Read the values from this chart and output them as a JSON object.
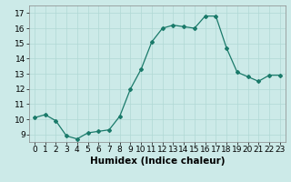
{
  "x": [
    0,
    1,
    2,
    3,
    4,
    5,
    6,
    7,
    8,
    9,
    10,
    11,
    12,
    13,
    14,
    15,
    16,
    17,
    18,
    19,
    20,
    21,
    22,
    23
  ],
  "y": [
    10.1,
    10.3,
    9.9,
    8.9,
    8.7,
    9.1,
    9.2,
    9.3,
    10.2,
    12.0,
    13.3,
    15.1,
    16.0,
    16.2,
    16.1,
    16.0,
    16.8,
    16.8,
    14.7,
    13.1,
    12.8,
    12.5,
    12.9,
    12.9
  ],
  "line_color": "#1a7a6a",
  "marker": "D",
  "marker_size": 2,
  "bg_color": "#cceae8",
  "grid_color": "#b0d8d4",
  "xlabel": "Humidex (Indice chaleur)",
  "xlim": [
    -0.5,
    23.5
  ],
  "ylim": [
    8.5,
    17.5
  ],
  "yticks": [
    9,
    10,
    11,
    12,
    13,
    14,
    15,
    16,
    17
  ],
  "xticks": [
    0,
    1,
    2,
    3,
    4,
    5,
    6,
    7,
    8,
    9,
    10,
    11,
    12,
    13,
    14,
    15,
    16,
    17,
    18,
    19,
    20,
    21,
    22,
    23
  ],
  "tick_fontsize": 6.5,
  "label_fontsize": 7.5
}
